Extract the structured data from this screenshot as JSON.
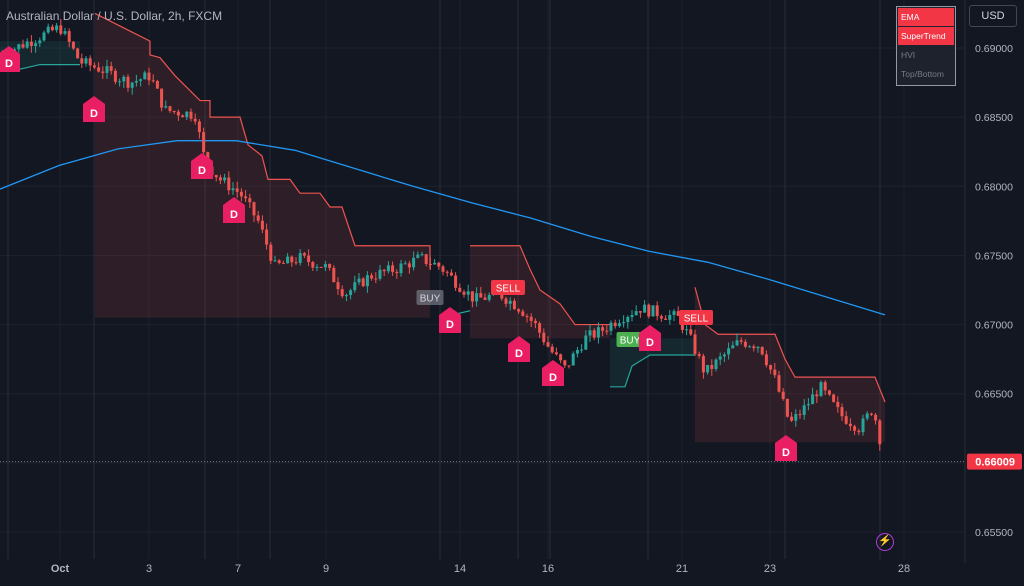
{
  "title": "Australian Dollar / U.S. Dollar, 2h, FXCM",
  "currency_button": "USD",
  "indicators": [
    {
      "label": "EMA",
      "active": true
    },
    {
      "label": "SuperTrend",
      "active": true
    },
    {
      "label": "HVI",
      "active": false
    },
    {
      "label": "Top/Bottom",
      "active": false
    }
  ],
  "colors": {
    "background": "#131722",
    "up": "#26a69a",
    "down": "#ef5350",
    "ema": "#2196f3",
    "marker_d": "#e91e63",
    "price_label": "#f23645"
  },
  "chart_data": {
    "type": "candlestick",
    "y_ticks": [
      "0.69000",
      "0.68500",
      "0.68000",
      "0.67500",
      "0.67000",
      "0.66500",
      "0.66000",
      "0.65500"
    ],
    "x_ticks": [
      "Oct",
      "3",
      "7",
      "9",
      "14",
      "16",
      "21",
      "23",
      "28"
    ],
    "ylim": [
      0.6535,
      0.6925
    ],
    "last_price": "0.66009",
    "ema_line": [
      0.6798,
      0.6815,
      0.6827,
      0.6833,
      0.6833,
      0.6826,
      0.6813,
      0.68,
      0.6788,
      0.6777,
      0.6764,
      0.6753,
      0.6745,
      0.6733,
      0.672,
      0.6707
    ],
    "signals": [
      {
        "label": "BUY",
        "style": "neutral"
      },
      {
        "label": "SELL",
        "style": "sell"
      },
      {
        "label": "BUY",
        "style": "buy"
      },
      {
        "label": "SELL",
        "style": "sell"
      }
    ],
    "markers": [
      "D",
      "D",
      "D",
      "D",
      "D",
      "D",
      "D",
      "D",
      "D"
    ]
  }
}
